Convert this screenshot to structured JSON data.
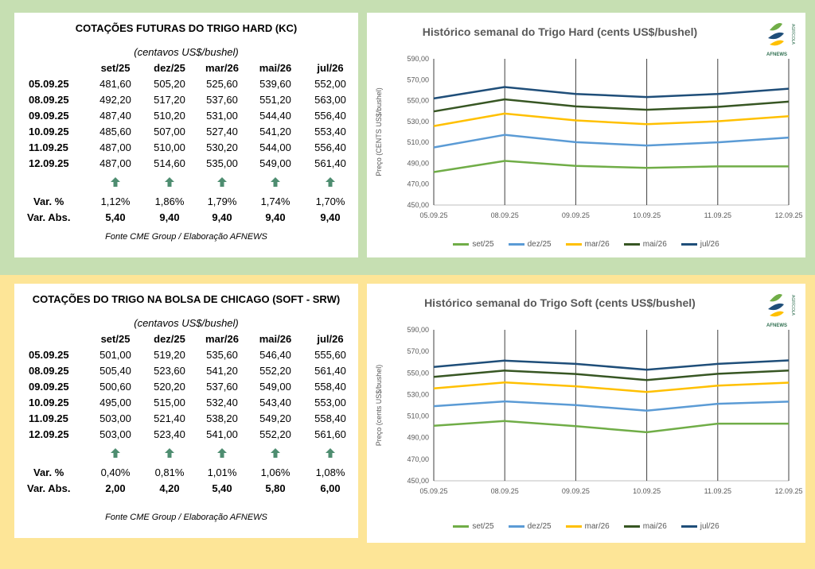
{
  "colors": {
    "top_band": "#c6dfb2",
    "bottom_band": "#fde597",
    "arrow": "#4e8d70",
    "set25": "#70ad47",
    "dez25": "#5b9bd5",
    "mar26": "#ffc000",
    "mai26": "#375623",
    "jul26": "#1f4e79"
  },
  "hard_table": {
    "title": "COTAÇÕES FUTURAS DO TRIGO HARD (KC)",
    "unit": "(centavos US$/bushel)",
    "columns": [
      "set/25",
      "dez/25",
      "mar/26",
      "mai/26",
      "jul/26"
    ],
    "rows": [
      {
        "date": "05.09.25",
        "values": [
          "481,60",
          "505,20",
          "525,60",
          "539,60",
          "552,00"
        ]
      },
      {
        "date": "08.09.25",
        "values": [
          "492,20",
          "517,20",
          "537,60",
          "551,20",
          "563,00"
        ]
      },
      {
        "date": "09.09.25",
        "values": [
          "487,40",
          "510,20",
          "531,00",
          "544,40",
          "556,40"
        ]
      },
      {
        "date": "10.09.25",
        "values": [
          "485,60",
          "507,00",
          "527,40",
          "541,20",
          "553,40"
        ]
      },
      {
        "date": "11.09.25",
        "values": [
          "487,00",
          "510,00",
          "530,20",
          "544,00",
          "556,40"
        ]
      },
      {
        "date": "12.09.25",
        "values": [
          "487,00",
          "514,60",
          "535,00",
          "549,00",
          "561,40"
        ]
      }
    ],
    "arrow_icon": "up-arrow-icon",
    "var_pct_label": "Var. %",
    "var_pct": [
      "1,12%",
      "1,86%",
      "1,79%",
      "1,74%",
      "1,70%"
    ],
    "var_abs_label": "Var. Abs.",
    "var_abs": [
      "5,40",
      "9,40",
      "9,40",
      "9,40",
      "9,40"
    ],
    "source": "Fonte CME Group / Elaboração AFNEWS"
  },
  "soft_table": {
    "title": "COTAÇÕES DO TRIGO NA BOLSA DE CHICAGO (SOFT - SRW)",
    "unit": "(centavos US$/bushel)",
    "columns": [
      "set/25",
      "dez/25",
      "mar/26",
      "mai/26",
      "jul/26"
    ],
    "rows": [
      {
        "date": "05.09.25",
        "values": [
          "501,00",
          "519,20",
          "535,60",
          "546,40",
          "555,60"
        ]
      },
      {
        "date": "08.09.25",
        "values": [
          "505,40",
          "523,60",
          "541,20",
          "552,20",
          "561,40"
        ]
      },
      {
        "date": "09.09.25",
        "values": [
          "500,60",
          "520,20",
          "537,60",
          "549,00",
          "558,40"
        ]
      },
      {
        "date": "10.09.25",
        "values": [
          "495,00",
          "515,00",
          "532,40",
          "543,40",
          "553,00"
        ]
      },
      {
        "date": "11.09.25",
        "values": [
          "503,00",
          "521,40",
          "538,20",
          "549,20",
          "558,40"
        ]
      },
      {
        "date": "12.09.25",
        "values": [
          "503,00",
          "523,40",
          "541,00",
          "552,20",
          "561,60"
        ]
      }
    ],
    "arrow_icon": "up-arrow-icon",
    "var_pct_label": "Var. %",
    "var_pct": [
      "0,40%",
      "0,81%",
      "1,01%",
      "1,06%",
      "1,08%"
    ],
    "var_abs_label": "Var. Abs.",
    "var_abs": [
      "2,00",
      "4,20",
      "5,40",
      "5,80",
      "6,00"
    ],
    "source": "Fonte CME Group / Elaboração AFNEWS"
  },
  "logo": {
    "text": "AFNEWS",
    "side_text": "AGRÍCOLA"
  },
  "chart_data": [
    {
      "type": "line",
      "title": "Histórico semanal do Trigo Hard (cents US$/bushel)",
      "ylabel": "Preço (CENTS US$/bushel)",
      "xlabel": "",
      "x": [
        "05.09.25",
        "08.09.25",
        "09.09.25",
        "10.09.25",
        "11.09.25",
        "12.09.25"
      ],
      "ylim": [
        450,
        590
      ],
      "yticks": [
        "450,00",
        "470,00",
        "490,00",
        "510,00",
        "530,00",
        "550,00",
        "570,00",
        "590,00"
      ],
      "grid": "vertical",
      "legend": "bottom",
      "series": [
        {
          "name": "set/25",
          "color": "#70ad47",
          "values": [
            481.6,
            492.2,
            487.4,
            485.6,
            487.0,
            487.0
          ]
        },
        {
          "name": "dez/25",
          "color": "#5b9bd5",
          "values": [
            505.2,
            517.2,
            510.2,
            507.0,
            510.0,
            514.6
          ]
        },
        {
          "name": "mar/26",
          "color": "#ffc000",
          "values": [
            525.6,
            537.6,
            531.0,
            527.4,
            530.2,
            535.0
          ]
        },
        {
          "name": "mai/26",
          "color": "#375623",
          "values": [
            539.6,
            551.2,
            544.4,
            541.2,
            544.0,
            549.0
          ]
        },
        {
          "name": "jul/26",
          "color": "#1f4e79",
          "values": [
            552.0,
            563.0,
            556.4,
            553.4,
            556.4,
            561.4
          ]
        }
      ]
    },
    {
      "type": "line",
      "title": "Histórico semanal do Trigo Soft (cents US$/bushel)",
      "ylabel": "Preço (cents US$/bushel)",
      "xlabel": "",
      "x": [
        "05.09.25",
        "08.09.25",
        "09.09.25",
        "10.09.25",
        "11.09.25",
        "12.09.25"
      ],
      "ylim": [
        450,
        590
      ],
      "yticks": [
        "450,00",
        "470,00",
        "490,00",
        "510,00",
        "530,00",
        "550,00",
        "570,00",
        "590,00"
      ],
      "grid": "vertical",
      "legend": "bottom",
      "series": [
        {
          "name": "set/25",
          "color": "#70ad47",
          "values": [
            501.0,
            505.4,
            500.6,
            495.0,
            503.0,
            503.0
          ]
        },
        {
          "name": "dez/25",
          "color": "#5b9bd5",
          "values": [
            519.2,
            523.6,
            520.2,
            515.0,
            521.4,
            523.4
          ]
        },
        {
          "name": "mar/26",
          "color": "#ffc000",
          "values": [
            535.6,
            541.2,
            537.6,
            532.4,
            538.2,
            541.0
          ]
        },
        {
          "name": "mai/26",
          "color": "#375623",
          "values": [
            546.4,
            552.2,
            549.0,
            543.4,
            549.2,
            552.2
          ]
        },
        {
          "name": "jul/26",
          "color": "#1f4e79",
          "values": [
            555.6,
            561.4,
            558.4,
            553.0,
            558.4,
            561.6
          ]
        }
      ]
    }
  ]
}
